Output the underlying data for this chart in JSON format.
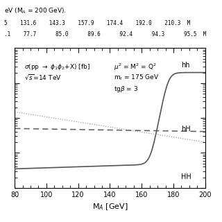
{
  "title_top": "eV (M_A = 200 GeV).",
  "table_row1": [
    "5",
    "131.6",
    "143.3",
    "157.9",
    "174.4",
    "192.0",
    "210.3",
    "M"
  ],
  "table_row2": [
    ".1",
    "77.7",
    "85.0",
    "89.6",
    "92.4",
    "94.3",
    "95.5",
    "M"
  ],
  "xlabel": "M$_A$ [GeV]",
  "ylabel": "",
  "annotation1_line1": "$\\sigma$(pp $\\rightarrow$ $\\phi_1\\phi_2$+X) [fb]",
  "annotation1_line2": "$\\sqrt{s}$=14 TeV",
  "annotation2_line1": "$\\mu^2$ = M$^2$ = Q$^2$",
  "annotation2_line2": "m$_t$ = 175 GeV",
  "annotation2_line3": "tg$\\beta$ = 3",
  "label_hh": "hh",
  "label_hH": "hH",
  "label_HH": "HH",
  "xmin": 80,
  "xmax": 200,
  "ymin": 0.1,
  "ymax": 1000,
  "background_color": "#ffffff",
  "line_color_solid": "#555555",
  "line_color_dashed": "#666666",
  "line_color_dotted": "#999999",
  "tick_label_color": "#000000"
}
